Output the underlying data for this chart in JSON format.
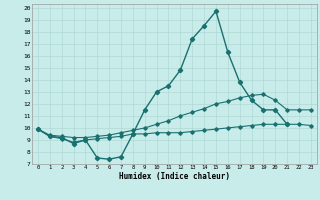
{
  "xlabel": "Humidex (Indice chaleur)",
  "bg_color": "#c8ece9",
  "grid_color": "#b0d8d4",
  "line_color": "#1a7070",
  "xlim": [
    -0.5,
    23.5
  ],
  "ylim": [
    7,
    20.3
  ],
  "xticks": [
    0,
    1,
    2,
    3,
    4,
    5,
    6,
    7,
    8,
    9,
    10,
    11,
    12,
    13,
    14,
    15,
    16,
    17,
    18,
    19,
    20,
    21,
    22,
    23
  ],
  "yticks": [
    7,
    8,
    9,
    10,
    11,
    12,
    13,
    14,
    15,
    16,
    17,
    18,
    19,
    20
  ],
  "line1_x": [
    0,
    1,
    2,
    3,
    4,
    5,
    6,
    7,
    8,
    9,
    10,
    11,
    12,
    13,
    14,
    15,
    16,
    17,
    18,
    19,
    20,
    21
  ],
  "line1_y": [
    9.9,
    9.3,
    9.2,
    8.7,
    9.0,
    7.5,
    7.4,
    7.6,
    9.5,
    11.5,
    13.0,
    13.5,
    14.8,
    17.4,
    18.5,
    19.7,
    16.3,
    13.8,
    12.3,
    11.5,
    11.5,
    10.3
  ],
  "line2_x": [
    0,
    1,
    2,
    3,
    4,
    5,
    6,
    7,
    8,
    9,
    10,
    11,
    12,
    13,
    14,
    15,
    16,
    17,
    18,
    19,
    20,
    21,
    22,
    23
  ],
  "line2_y": [
    9.9,
    9.4,
    9.3,
    9.2,
    9.2,
    9.3,
    9.4,
    9.6,
    9.8,
    10.0,
    10.3,
    10.6,
    11.0,
    11.3,
    11.6,
    12.0,
    12.2,
    12.5,
    12.7,
    12.8,
    12.3,
    11.5,
    11.5,
    11.5
  ],
  "line3_x": [
    0,
    1,
    2,
    3,
    4,
    5,
    6,
    7,
    8,
    9,
    10,
    11,
    12,
    13,
    14,
    15,
    16,
    17,
    18,
    19,
    20,
    21,
    22,
    23
  ],
  "line3_y": [
    9.9,
    9.3,
    9.1,
    8.8,
    9.0,
    9.1,
    9.2,
    9.3,
    9.5,
    9.5,
    9.6,
    9.6,
    9.6,
    9.7,
    9.8,
    9.9,
    10.0,
    10.1,
    10.2,
    10.3,
    10.3,
    10.3,
    10.3,
    10.2
  ]
}
